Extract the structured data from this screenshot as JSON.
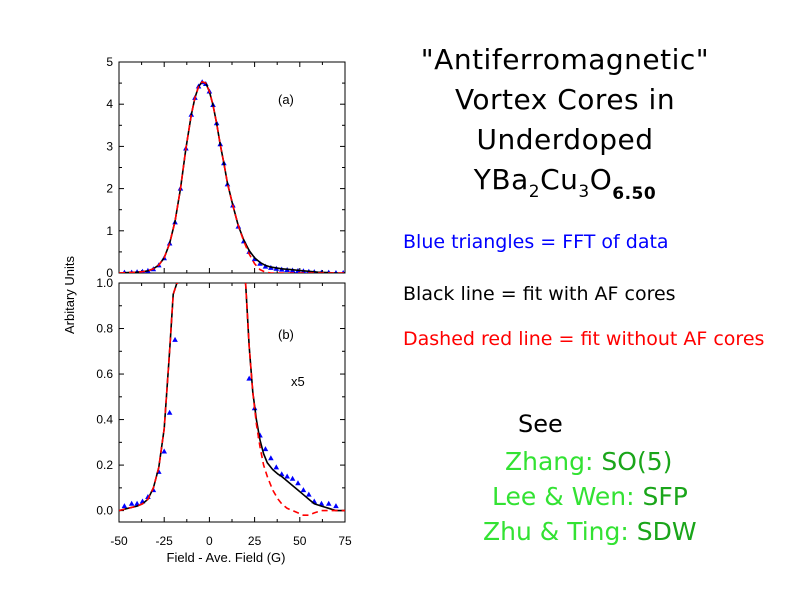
{
  "title": {
    "line1": "\"Antiferromagnetic\"",
    "line2": "Vortex Cores in",
    "line3": "Underdoped",
    "formula": {
      "y": "YBa",
      "s2": "2",
      "cu": "Cu",
      "s3": "3",
      "o": "O",
      "s650": "6.50"
    }
  },
  "legend": {
    "blue": "Blue triangles = FFT of data",
    "black": "Black line = fit with AF cores",
    "red": "Dashed red line = fit without AF cores"
  },
  "see": {
    "label": "See",
    "refs": [
      {
        "name": "Zhang:",
        "model": "SO(5)"
      },
      {
        "name": "Lee & Wen:",
        "model": "SFP"
      },
      {
        "name": "Zhu & Ting:",
        "model": "SDW"
      }
    ]
  },
  "colors": {
    "blue": "#0000ff",
    "black": "#000000",
    "red": "#ff0000",
    "green_light": "#33e233",
    "green_dark": "#1aa51a"
  },
  "chart_data": {
    "type": "line",
    "xlabel": "Field - Ave. Field (G)",
    "ylabel": "Arbitary Units",
    "xlim": [
      -50,
      75
    ],
    "xticks": [
      "-50",
      "-25",
      "0",
      "25",
      "50",
      "75"
    ],
    "panels": [
      {
        "label": "(a)",
        "ylim": [
          0,
          5
        ],
        "yticks": [
          "0",
          "1",
          "2",
          "3",
          "4",
          "5"
        ],
        "series": [
          {
            "style": "blue-triangles",
            "x": [
              -47,
              -43,
              -40,
              -37,
              -34,
              -31,
              -28,
              -25,
              -22,
              -19,
              -16,
              -13,
              -10,
              -8,
              -6,
              -4,
              -2,
              0,
              2,
              4,
              6,
              8,
              10,
              13,
              16,
              19,
              22,
              25,
              28,
              31,
              34,
              37,
              40,
              43,
              46,
              49,
              52,
              55,
              58,
              62,
              66,
              70,
              74
            ],
            "y": [
              0.01,
              0.01,
              0.02,
              0.03,
              0.05,
              0.09,
              0.18,
              0.35,
              0.7,
              1.2,
              2.0,
              2.95,
              3.75,
              4.15,
              4.42,
              4.52,
              4.48,
              4.3,
              3.98,
              3.55,
              3.05,
              2.6,
              2.1,
              1.6,
              1.1,
              0.75,
              0.5,
              0.33,
              0.22,
              0.15,
              0.12,
              0.1,
              0.08,
              0.07,
              0.06,
              0.05,
              0.04,
              0.03,
              0.02,
              0.01,
              0.01,
              0.0,
              0.0
            ]
          },
          {
            "style": "black-solid",
            "x": [
              -50,
              -45,
              -40,
              -37,
              -34,
              -31,
              -28,
              -25,
              -22,
              -19,
              -16,
              -13,
              -10,
              -8,
              -6,
              -4,
              -2,
              0,
              2,
              4,
              6,
              8,
              10,
              13,
              16,
              19,
              22,
              25,
              28,
              31,
              34,
              37,
              40,
              45,
              50,
              55,
              60,
              65,
              70,
              75
            ],
            "y": [
              0.0,
              0.01,
              0.02,
              0.03,
              0.05,
              0.1,
              0.19,
              0.36,
              0.7,
              1.22,
              2.0,
              2.95,
              3.75,
              4.15,
              4.42,
              4.53,
              4.5,
              4.3,
              3.98,
              3.55,
              3.05,
              2.6,
              2.12,
              1.6,
              1.12,
              0.78,
              0.53,
              0.36,
              0.25,
              0.18,
              0.14,
              0.12,
              0.1,
              0.08,
              0.06,
              0.04,
              0.02,
              0.01,
              0.0,
              0.0
            ]
          },
          {
            "style": "red-dashed",
            "x": [
              -50,
              -45,
              -40,
              -37,
              -34,
              -31,
              -28,
              -25,
              -22,
              -19,
              -16,
              -13,
              -10,
              -8,
              -6,
              -4,
              -2,
              0,
              2,
              4,
              6,
              8,
              10,
              13,
              16,
              19,
              22,
              25,
              28,
              31,
              34,
              37,
              40,
              45,
              50,
              55,
              60,
              65,
              70,
              75
            ],
            "y": [
              0.0,
              0.01,
              0.02,
              0.03,
              0.05,
              0.1,
              0.19,
              0.36,
              0.7,
              1.22,
              2.0,
              2.95,
              3.75,
              4.15,
              4.42,
              4.53,
              4.5,
              4.3,
              3.98,
              3.55,
              3.05,
              2.6,
              2.12,
              1.6,
              1.12,
              0.75,
              0.45,
              0.22,
              0.08,
              0.02,
              0.0,
              0.0,
              0.0,
              0.0,
              0.0,
              0.0,
              0.0,
              0.0,
              0.0,
              0.0
            ]
          }
        ]
      },
      {
        "label": "(b)",
        "annotation": "x5",
        "ylim": [
          -0.05,
          1.0
        ],
        "yticks": [
          "0.0",
          "0.2",
          "0.4",
          "0.6",
          "0.8",
          "1.0"
        ],
        "series": [
          {
            "style": "blue-triangles",
            "x": [
              -47,
              -43,
              -40,
              -37,
              -34,
              -31,
              -28,
              -25,
              -22,
              -19,
              22,
              25,
              28,
              31,
              34,
              37,
              40,
              43,
              46,
              49,
              52,
              55,
              58,
              62,
              66,
              70
            ],
            "y": [
              0.02,
              0.03,
              0.03,
              0.04,
              0.06,
              0.09,
              0.17,
              0.26,
              0.43,
              0.75,
              0.58,
              0.45,
              0.33,
              0.27,
              0.23,
              0.19,
              0.16,
              0.15,
              0.14,
              0.12,
              0.09,
              0.07,
              0.04,
              0.03,
              0.03,
              0.02
            ]
          },
          {
            "style": "black-solid",
            "x": [
              -50,
              -45,
              -40,
              -37,
              -34,
              -31,
              -28,
              -25,
              -22,
              -20,
              -18,
              -17.3,
              20,
              22,
              24,
              26,
              28,
              30,
              32,
              35,
              38,
              40,
              43,
              46,
              49,
              52,
              55,
              58,
              62,
              66,
              70,
              75
            ],
            "y": [
              0.0,
              0.01,
              0.02,
              0.03,
              0.05,
              0.1,
              0.19,
              0.36,
              0.7,
              0.95,
              1.0,
              1.0,
              1.0,
              0.72,
              0.52,
              0.4,
              0.31,
              0.25,
              0.21,
              0.18,
              0.16,
              0.15,
              0.13,
              0.11,
              0.09,
              0.07,
              0.05,
              0.03,
              0.02,
              0.01,
              0.0,
              0.0
            ]
          },
          {
            "style": "red-dashed",
            "x": [
              -50,
              -45,
              -40,
              -37,
              -34,
              -31,
              -28,
              -25,
              -22,
              -20,
              -18,
              -17.3,
              20,
              22,
              24,
              26,
              28,
              30,
              32,
              35,
              38,
              40,
              43,
              46,
              49,
              52,
              55,
              58,
              62,
              66,
              70,
              75
            ],
            "y": [
              0.0,
              0.01,
              0.02,
              0.03,
              0.05,
              0.1,
              0.19,
              0.36,
              0.7,
              0.95,
              1.0,
              1.0,
              1.0,
              0.72,
              0.52,
              0.38,
              0.28,
              0.2,
              0.15,
              0.09,
              0.05,
              0.03,
              0.01,
              0.0,
              -0.01,
              -0.02,
              -0.02,
              -0.01,
              0.0,
              0.0,
              0.0,
              0.0
            ]
          }
        ]
      }
    ]
  }
}
